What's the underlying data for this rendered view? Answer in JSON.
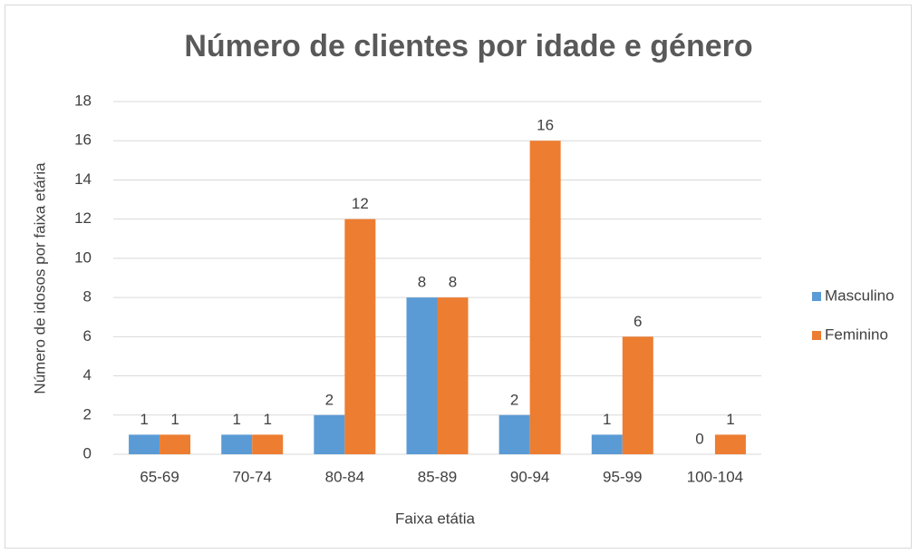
{
  "chart_data": {
    "type": "bar",
    "title": "Número de clientes por idade e género",
    "x_label": "Faixa etátia",
    "y_label": "Número de idosos por faixa etária",
    "categories": [
      "65-69",
      "70-74",
      "80-84",
      "85-89",
      "90-94",
      "95-99",
      "100-104"
    ],
    "series": [
      {
        "name": "Masculino",
        "color": "#5b9bd5",
        "values": [
          1,
          1,
          2,
          8,
          2,
          1,
          0
        ]
      },
      {
        "name": "Feminino",
        "color": "#ed7d31",
        "values": [
          1,
          1,
          12,
          8,
          16,
          6,
          1
        ]
      }
    ],
    "ylim": [
      0,
      18
    ],
    "yticks": [
      0,
      2,
      4,
      6,
      8,
      10,
      12,
      14,
      16,
      18
    ],
    "grid": true,
    "legend": "right"
  }
}
